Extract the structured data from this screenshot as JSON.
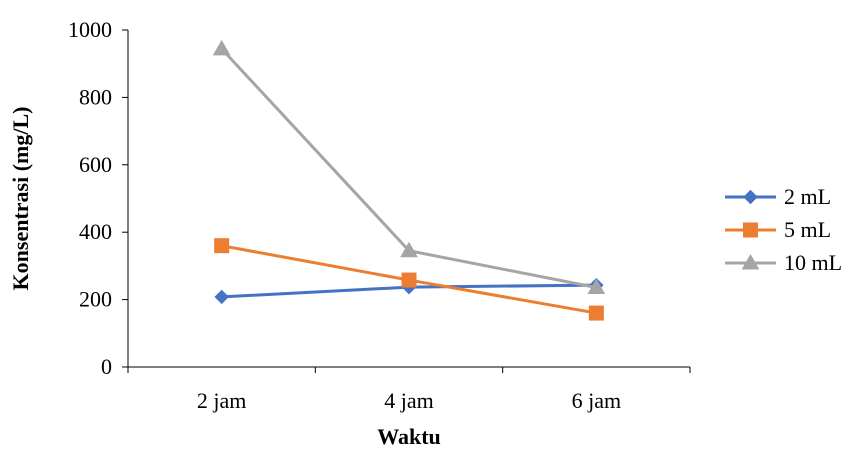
{
  "chart_data": {
    "type": "line",
    "categories": [
      "2 jam",
      "4 jam",
      "6 jam"
    ],
    "series": [
      {
        "name": "2 mL",
        "values": [
          208,
          237,
          243
        ],
        "color": "#4472C4",
        "marker": "diamond"
      },
      {
        "name": "5 mL",
        "values": [
          360,
          258,
          160
        ],
        "color": "#ED7D31",
        "marker": "square"
      },
      {
        "name": "10 mL",
        "values": [
          944,
          345,
          236
        ],
        "color": "#A5A5A5",
        "marker": "triangle"
      }
    ],
    "xlabel": "Waktu",
    "ylabel": "Konsentrasi (mg/L)",
    "ylim": [
      0,
      1000
    ],
    "yticks": [
      0,
      200,
      400,
      600,
      800,
      1000
    ],
    "grid": false,
    "legend": "right"
  }
}
